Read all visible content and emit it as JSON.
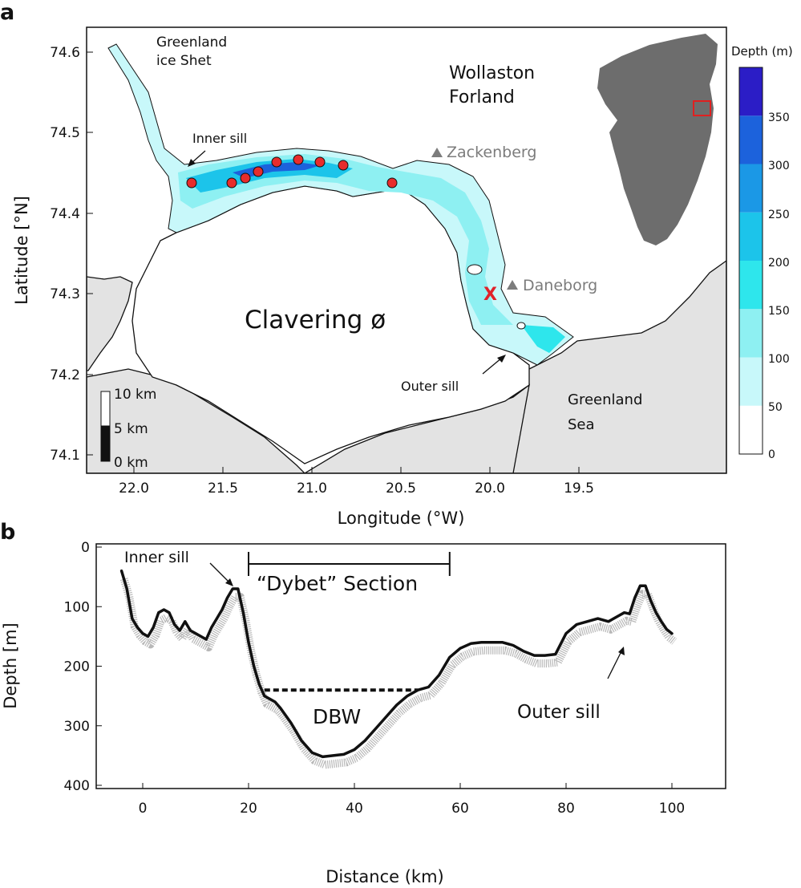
{
  "panel_a": {
    "label": "a",
    "xlabel": "Longitude (°W)",
    "ylabel": "Latitude [°N]",
    "lon_ticks": [
      "22.0",
      "21.5",
      "21.0",
      "20.5",
      "20.0",
      "19.5"
    ],
    "lat_ticks": [
      "74.6",
      "74.5",
      "74.4",
      "74.3",
      "74.2",
      "74.1"
    ],
    "place_labels": {
      "ice_sheet_line1": "Greenland",
      "ice_sheet_line2": "ice Shet",
      "wollaston_line1": "Wollaston",
      "wollaston_line2": "Forland",
      "zackenberg": "Zackenberg",
      "daneborg": "Daneborg",
      "clavering": "Clavering ø",
      "inner_sill": "Inner sill",
      "outer_sill": "Outer sill",
      "sea_line1": "Greenland",
      "sea_line2": "Sea"
    },
    "x_marker": "X",
    "scale_bar": {
      "label_top": "10 km",
      "label_mid": "5 km",
      "label_bottom": "0 km"
    },
    "colorbar": {
      "title": "Depth (m)",
      "ticks": [
        "350",
        "300",
        "250",
        "200",
        "150",
        "100",
        "50",
        "0"
      ],
      "colors": [
        "#ffffff",
        "#c8f8fa",
        "#8ef0f2",
        "#2ee6ec",
        "#1cc4ea",
        "#1b98e6",
        "#1c62dc",
        "#2b1dc6"
      ]
    },
    "stations_count_label": "",
    "colors": {
      "land": "#e3e3e3",
      "station": "#e82c2c",
      "marker_red": "#e0222a",
      "greenland": "#6d6d6d",
      "inset_box": "#e02020",
      "label_gray": "#7c7c7c"
    }
  },
  "panel_b": {
    "label": "b",
    "xlabel": "Distance (km)",
    "ylabel": "Depth [m]",
    "x_ticks": [
      "0",
      "20",
      "40",
      "60",
      "80",
      "100"
    ],
    "y_ticks": [
      "0",
      "100",
      "200",
      "300",
      "400"
    ],
    "inner_sill": "Inner sill",
    "dybet": "“Dybet” Section",
    "dbw": "DBW",
    "outer_sill": "Outer sill"
  },
  "chart_data": {
    "type": "line",
    "title": "",
    "xlabel": "Distance (km)",
    "ylabel": "Depth [m]",
    "xlim": [
      -10,
      110
    ],
    "ylim": [
      400,
      0
    ],
    "series": [
      {
        "x": [
          -4,
          -3,
          -2,
          -1,
          0,
          1,
          2,
          3,
          4,
          5,
          6,
          7,
          8,
          9,
          10,
          11,
          12,
          13,
          14,
          15,
          16,
          17,
          18,
          19,
          20,
          21,
          22,
          23,
          24,
          25,
          26,
          28,
          30,
          32,
          34,
          36,
          38,
          40,
          42,
          44,
          46,
          48,
          50,
          52,
          54,
          56,
          58,
          60,
          62,
          64,
          66,
          68,
          70,
          72,
          74,
          76,
          78,
          80,
          82,
          84,
          86,
          88,
          90,
          91,
          92,
          93,
          94,
          95,
          96,
          97,
          98,
          99,
          100
        ],
        "y": [
          40,
          70,
          120,
          135,
          145,
          150,
          135,
          110,
          105,
          110,
          130,
          140,
          125,
          140,
          145,
          150,
          155,
          135,
          120,
          105,
          85,
          70,
          70,
          110,
          160,
          200,
          230,
          250,
          255,
          260,
          270,
          295,
          325,
          345,
          352,
          350,
          348,
          340,
          325,
          305,
          285,
          265,
          250,
          240,
          235,
          215,
          185,
          170,
          162,
          160,
          160,
          160,
          165,
          175,
          182,
          182,
          180,
          145,
          130,
          125,
          120,
          125,
          115,
          110,
          112,
          85,
          65,
          65,
          90,
          110,
          125,
          138,
          145
        ]
      }
    ],
    "annotations": [
      {
        "text": "DBW",
        "depth_m": 240,
        "x_from_km": 23,
        "x_to_km": 52
      },
      {
        "text": "“Dybet” Section",
        "x_from_km": 20,
        "x_to_km": 58
      },
      {
        "text": "Inner sill",
        "x_km": 18
      },
      {
        "text": "Outer sill",
        "x_km": 92
      }
    ]
  }
}
